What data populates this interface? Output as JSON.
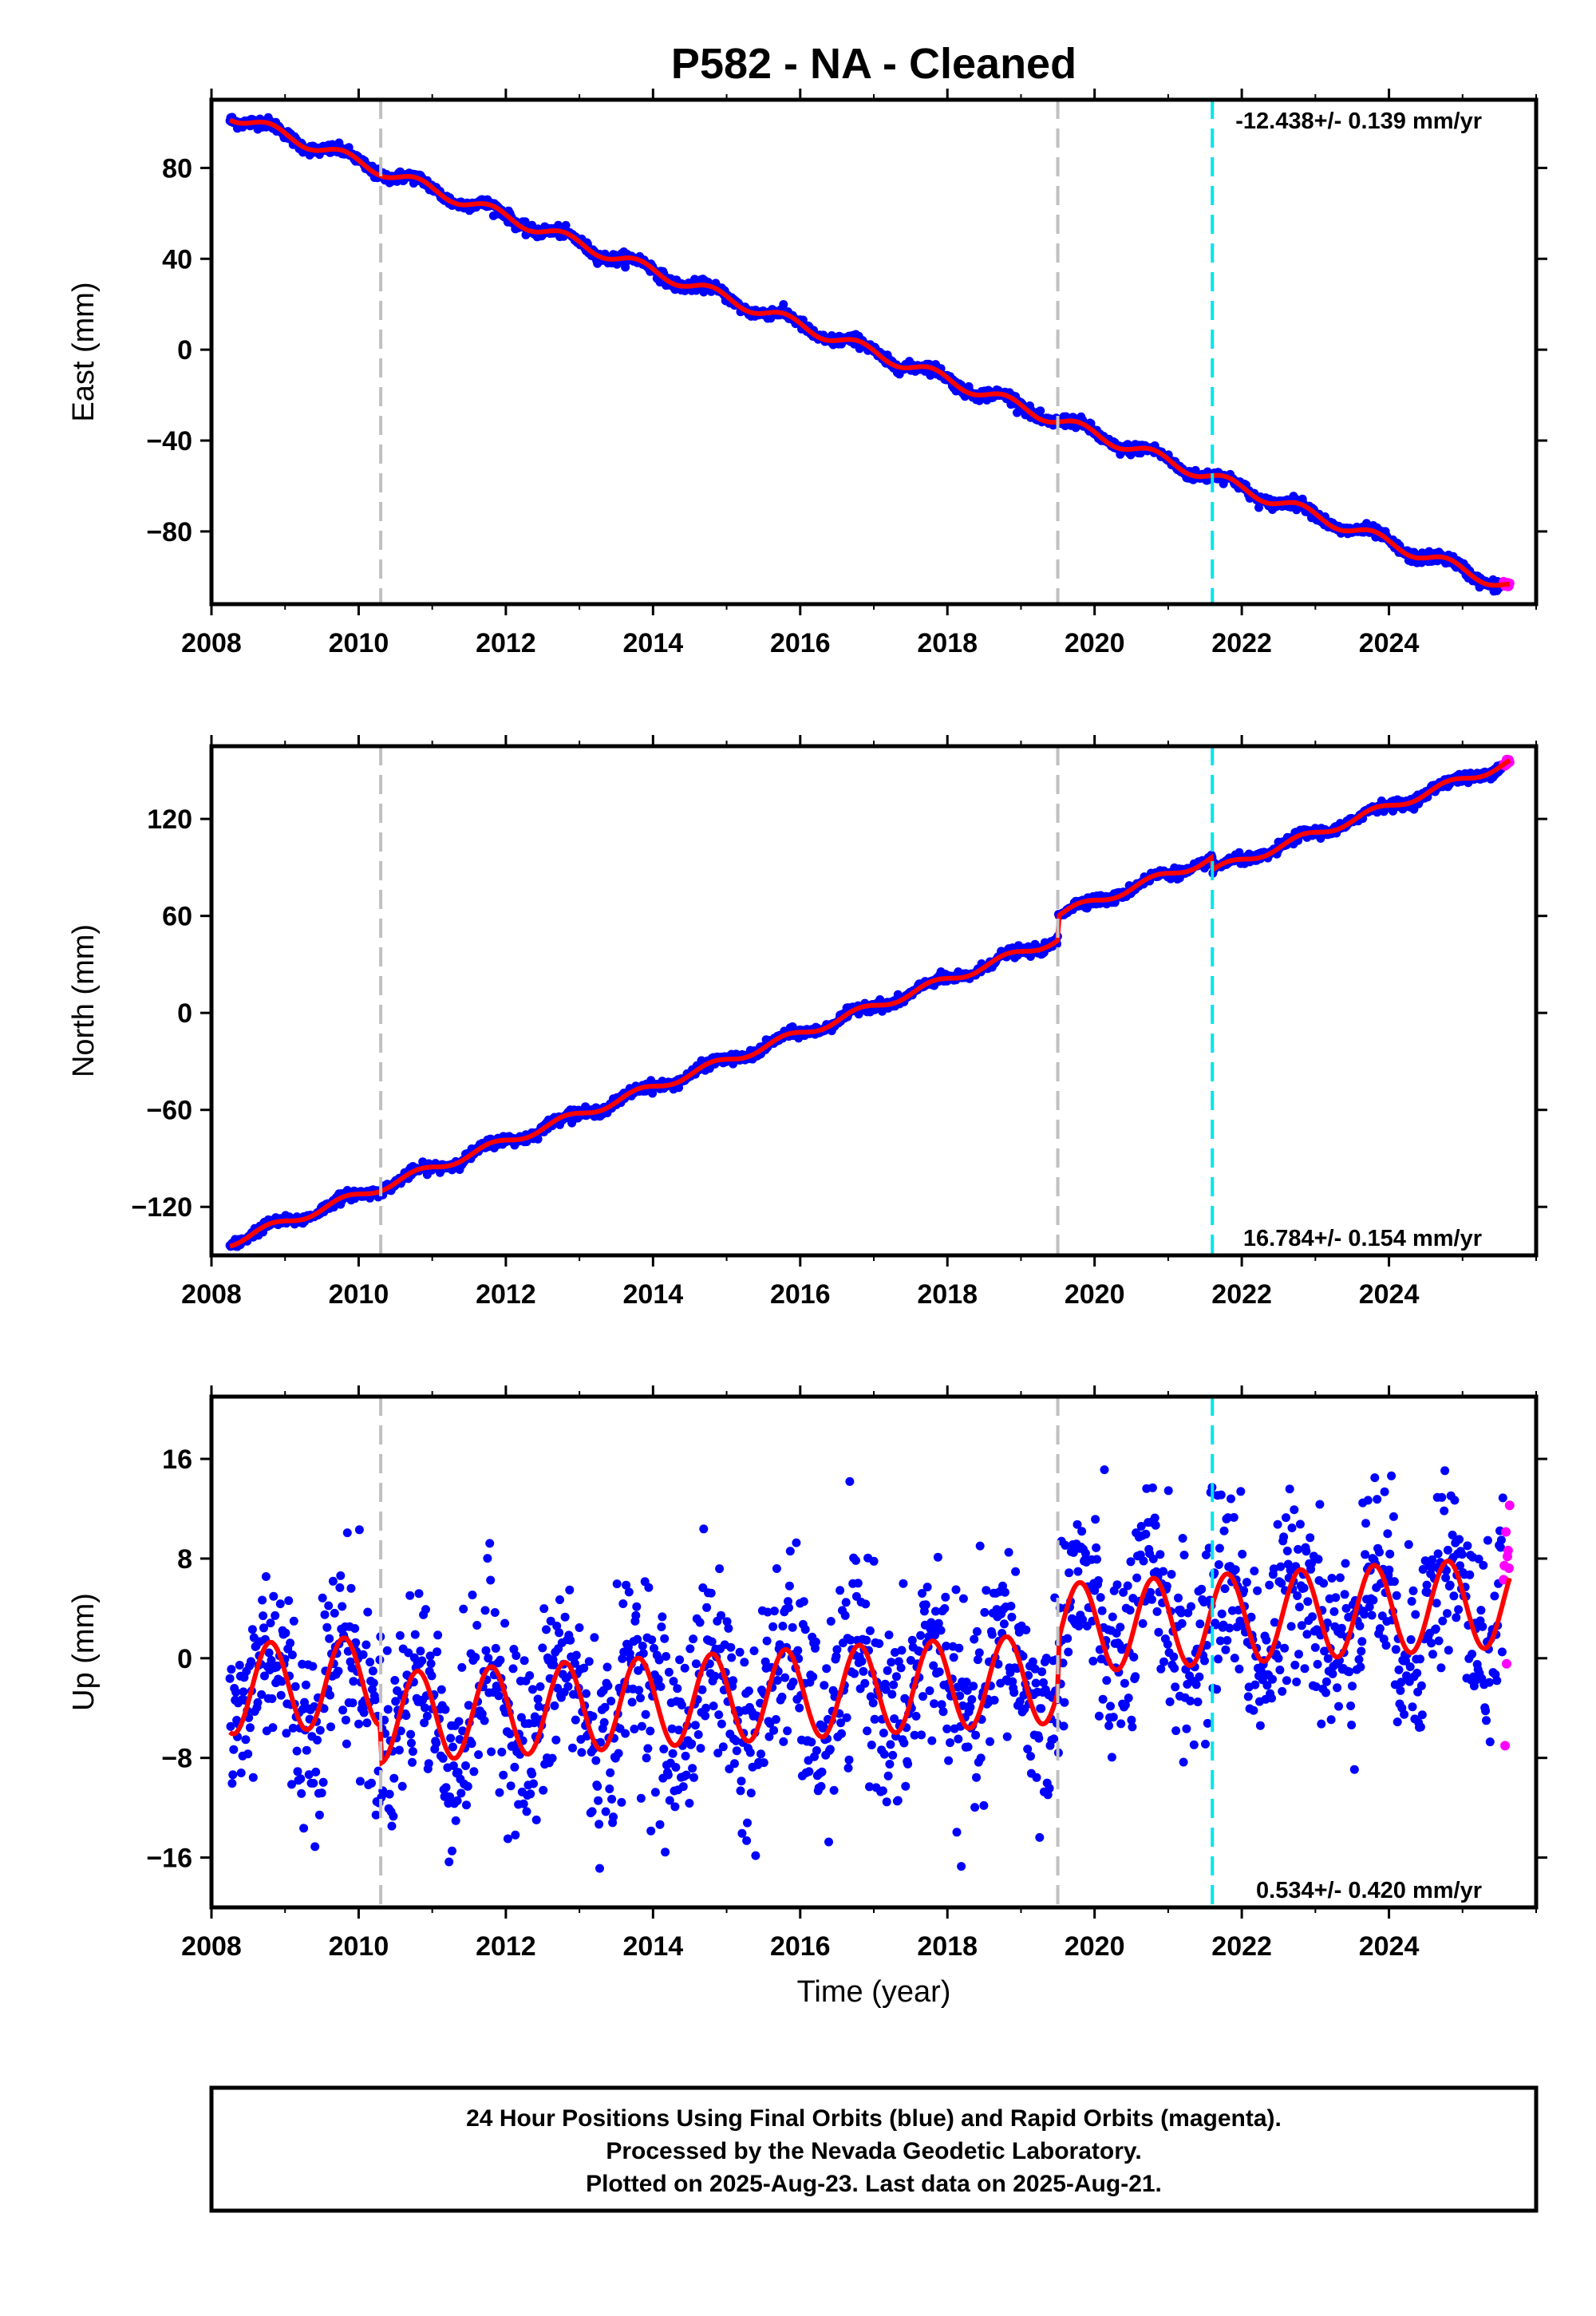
{
  "title": "P582  - NA - Cleaned",
  "colors": {
    "final_orbits": "#0000ff",
    "rapid_orbits": "#ff00ff",
    "model": "#ff0000",
    "equipment_change": "#c0c0c0",
    "earthquake": "#00e5ee"
  },
  "x_axis": {
    "label": "Time (year)",
    "range": [
      2008.0,
      2026.0
    ],
    "ticks": [
      2008,
      2010,
      2012,
      2014,
      2016,
      2018,
      2020,
      2022,
      2024
    ],
    "tick_labels": [
      "2008",
      "2010",
      "2012",
      "2014",
      "2016",
      "2018",
      "2020",
      "2022",
      "2024"
    ]
  },
  "chart_data": [
    {
      "type": "scatter",
      "panel": "east",
      "ylabel": "East (mm)",
      "ylim": [
        -112,
        110
      ],
      "yticks": [
        -80,
        -40,
        0,
        40,
        80
      ],
      "ytick_labels": [
        "−80",
        "−40",
        "0",
        "40",
        "80"
      ],
      "rate_text": "-12.438+/- 0.139 mm/yr",
      "rate_position": "top-right",
      "x_range": [
        2008.25,
        2025.64
      ],
      "start_value": 103.5,
      "end_value": -104.5,
      "seasonal_amplitude": 2.5,
      "steps": [],
      "noise_std": 1.2,
      "rapid_start": 2025.55,
      "vertical_lines": [
        {
          "x": 2010.3,
          "kind": "equipment_change"
        },
        {
          "x": 2019.5,
          "kind": "equipment_change"
        },
        {
          "x": 2021.6,
          "kind": "earthquake"
        }
      ]
    },
    {
      "type": "scatter",
      "panel": "north",
      "ylabel": "North (mm)",
      "ylim": [
        -150,
        165
      ],
      "yticks": [
        -120,
        -60,
        0,
        60,
        120
      ],
      "ytick_labels": [
        "−120",
        "−60",
        "0",
        "60",
        "120"
      ],
      "rate_text": "16.784+/- 0.154 mm/yr",
      "rate_position": "bottom-right",
      "x_range": [
        2008.25,
        2025.64
      ],
      "start_value": -142,
      "end_value": 155,
      "seasonal_amplitude": 2.5,
      "steps": [
        {
          "x": 2019.5,
          "dy": 15
        },
        {
          "x": 2021.6,
          "dy": -8
        }
      ],
      "noise_std": 1.5,
      "rapid_start": 2025.55,
      "vertical_lines": [
        {
          "x": 2010.3,
          "kind": "equipment_change"
        },
        {
          "x": 2019.5,
          "kind": "equipment_change"
        },
        {
          "x": 2021.6,
          "kind": "earthquake"
        }
      ]
    },
    {
      "type": "scatter",
      "panel": "up",
      "ylabel": "Up (mm)",
      "ylim": [
        -20,
        21
      ],
      "yticks": [
        -16,
        -8,
        0,
        8,
        16
      ],
      "ytick_labels": [
        "−16",
        "−8",
        "0",
        "8",
        "16"
      ],
      "rate_text": "0.534+/- 0.420 mm/yr",
      "rate_position": "bottom-right",
      "x_range": [
        2008.25,
        2025.64
      ],
      "start_value": -2.5,
      "end_value": 4.5,
      "seasonal_amplitude": 3.6,
      "steps": [
        {
          "x": 2010.3,
          "dy": -3
        },
        {
          "x": 2019.5,
          "dy": 4
        }
      ],
      "noise_std": 4.0,
      "rapid_start": 2025.55,
      "vertical_lines": [
        {
          "x": 2010.3,
          "kind": "equipment_change"
        },
        {
          "x": 2019.5,
          "kind": "equipment_change"
        },
        {
          "x": 2021.6,
          "kind": "earthquake"
        }
      ]
    }
  ],
  "footer": {
    "line1": "24 Hour Positions Using Final Orbits (blue) and Rapid Orbits (magenta).",
    "line2": "Processed by the Nevada Geodetic Laboratory.",
    "line3": "Plotted on 2025-Aug-23. Last data on 2025-Aug-21."
  }
}
